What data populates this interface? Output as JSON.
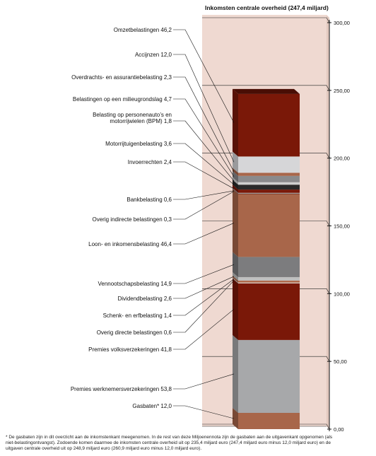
{
  "chart_data": {
    "type": "stacked-bar",
    "title": "Inkomsten centrale overheid (247,4 miljard)",
    "ylim": [
      0,
      300
    ],
    "yticks": [
      0,
      50,
      100,
      150,
      200,
      250,
      300
    ],
    "ytick_labels": [
      "0,00",
      "50,00",
      "100,00",
      "150,00",
      "200,00",
      "250,00",
      "300,00"
    ],
    "grid": false,
    "series": [
      {
        "name": "Gasbaten",
        "marker": "*",
        "value": 12.0,
        "value_label": "12,0",
        "color": "#a8664a"
      },
      {
        "name": "Premies werknemersverzekeringen",
        "value": 53.8,
        "value_label": "53,8",
        "color": "#a7a8aa"
      },
      {
        "name": "Premies volksverzekeringen",
        "value": 41.8,
        "value_label": "41,8",
        "color": "#7a1808"
      },
      {
        "name": "Overig directe belastingen",
        "value": 0.6,
        "value_label": "0,6",
        "color": "#d8d0cc"
      },
      {
        "name": "Schenk- en erfbelasting",
        "value": 1.4,
        "value_label": "1,4",
        "color": "#b06a4c"
      },
      {
        "name": "Dividendbelasting",
        "value": 2.6,
        "value_label": "2,6",
        "color": "#bfbfbf"
      },
      {
        "name": "Vennootschapsbelasting",
        "value": 14.9,
        "value_label": "14,9",
        "color": "#7c7c7e"
      },
      {
        "name": "Loon- en inkomensbelasting",
        "value": 46.4,
        "value_label": "46,4",
        "color": "#a8664a"
      },
      {
        "name": "Overig indirecte belastingen",
        "value": 0.3,
        "value_label": "0,3",
        "color": "#5a1008"
      },
      {
        "name": "Bankbelasting",
        "value": 0.6,
        "value_label": "0,6",
        "color": "#9a9a9a"
      },
      {
        "name": "Invoerrechten",
        "value": 2.4,
        "value_label": "2,4",
        "color": "#7a1808"
      },
      {
        "name": "Motorrijtuigenbelasting",
        "value": 3.6,
        "value_label": "3,6",
        "color": "#2a2a2a"
      },
      {
        "name": "Belasting op personenauto’s en motorrijwielen (BPM)",
        "value": 1.8,
        "value_label": "1,8",
        "color": "#cfcfcf"
      },
      {
        "name": "Belastingen op een milieugrondslag",
        "value": 4.7,
        "value_label": "4,7",
        "color": "#8a8a8c"
      },
      {
        "name": "Overdrachts- en assurantiebelasting",
        "value": 2.3,
        "value_label": "2,3",
        "color": "#a8664a"
      },
      {
        "name": "Accijnzen",
        "value": 12.0,
        "value_label": "12,0",
        "color": "#d6d6d8"
      },
      {
        "name": "Omzetbelastingen",
        "value": 46.2,
        "value_label": "46,2",
        "color": "#7a1808"
      }
    ],
    "labels": [
      {
        "series": "Omzetbelastingen",
        "lines": [
          "Omzetbelastingen 46,2"
        ]
      },
      {
        "series": "Accijnzen",
        "lines": [
          "Accijnzen 12,0"
        ]
      },
      {
        "series": "Overdrachts- en assurantiebelasting",
        "lines": [
          "Overdrachts- en assurantiebelasting 2,3"
        ]
      },
      {
        "series": "Belastingen op een milieugrondslag",
        "lines": [
          "Belastingen op een milieugrondslag 4,7"
        ]
      },
      {
        "series": "Belasting op personenauto’s en motorrijwielen (BPM)",
        "lines": [
          "Belasting op personenauto’s en",
          "motorrijwielen (BPM) 1,8"
        ]
      },
      {
        "series": "Motorrijtuigenbelasting",
        "lines": [
          "Motorrijtuigenbelasting 3,6"
        ]
      },
      {
        "series": "Invoerrechten",
        "lines": [
          "Invoerrechten 2,4"
        ]
      },
      {
        "series": "Bankbelasting",
        "lines": [
          "Bankbelasting 0,6"
        ]
      },
      {
        "series": "Overig indirecte belastingen",
        "lines": [
          "Overig indirecte belastingen 0,3"
        ]
      },
      {
        "series": "Loon- en inkomensbelasting",
        "lines": [
          "Loon- en inkomensbelasting 46,4"
        ]
      },
      {
        "series": "Vennootschapsbelasting",
        "lines": [
          "Vennootschapsbelasting 14,9"
        ]
      },
      {
        "series": "Dividendbelasting",
        "lines": [
          "Dividendbelasting 2,6"
        ]
      },
      {
        "series": "Schenk- en erfbelasting",
        "lines": [
          "Schenk- en erfbelasting 1,4"
        ]
      },
      {
        "series": "Overig directe belastingen",
        "lines": [
          "Overig directe belastingen 0,6"
        ]
      },
      {
        "series": "Premies volksverzekeringen",
        "lines": [
          "Premies volksverzekeringen 41,8"
        ]
      },
      {
        "series": "Premies werknemersverzekeringen",
        "lines": [
          "Premies werknemersverzekeringen 53,8"
        ]
      },
      {
        "series": "Gasbaten",
        "lines": [
          "Gasbaten* 12,0"
        ]
      }
    ],
    "footnote": "* De gasbaten zijn in dit overzicht aan de inkomstenkant meegenomen. In de rest van deze Miljoenennota zijn de gasbaten aan de uitgavenkant opgenomen (als niet-belastingontvangst). Zodoende komen daarmee de inkomsten centrale overheid uit op 235,4 miljard euro (247,4 miljard euro minus 12,0 miljard euro) en de uitgaven centrale overheid uit op 248,9 miljard euro (260,9 miljard euro minus 12,0 miljard euro).",
    "colors": {
      "panel": "#efd9d1",
      "panel_side": "#e2c9bf",
      "axis": "#111111"
    }
  }
}
